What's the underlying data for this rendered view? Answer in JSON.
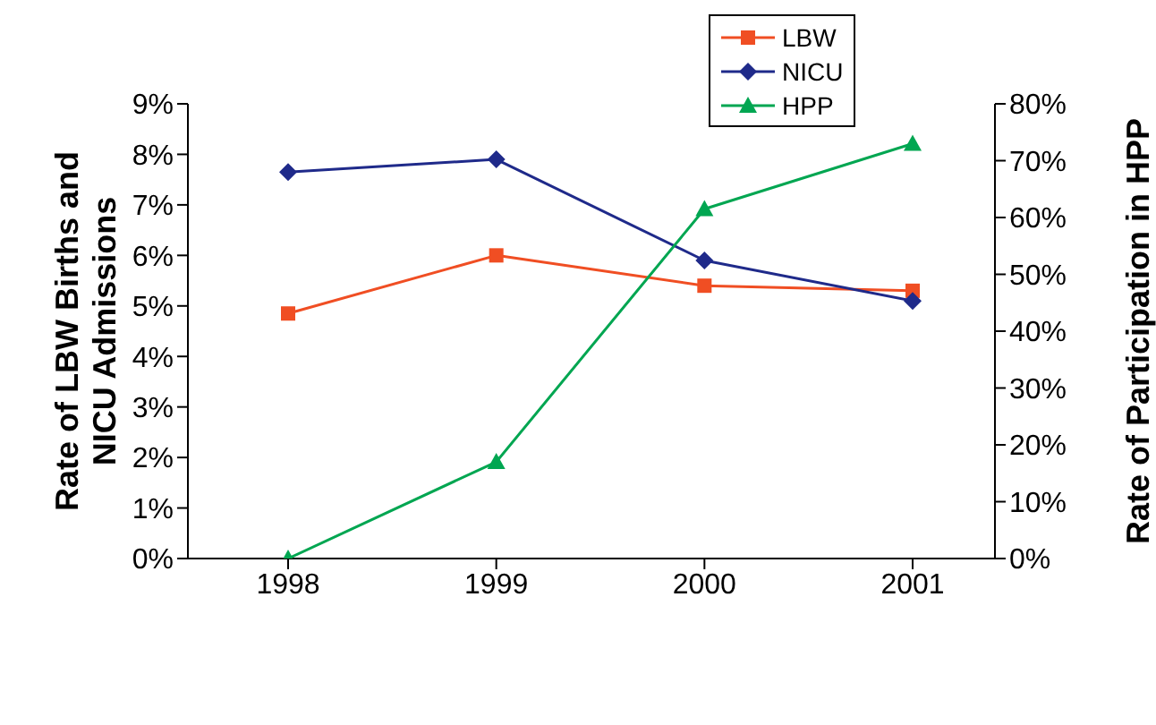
{
  "chart_data": {
    "type": "line",
    "categories": [
      "1998",
      "1999",
      "2000",
      "2001"
    ],
    "ylabel": "Rate of LBW Births and NICU Admissions",
    "y2label": "Rate of Participation in HPP",
    "ylim": [
      0,
      9
    ],
    "yticks": [
      {
        "value": 0,
        "label": "0%"
      },
      {
        "value": 1,
        "label": "1%"
      },
      {
        "value": 2,
        "label": "2%"
      },
      {
        "value": 3,
        "label": "3%"
      },
      {
        "value": 4,
        "label": "4%"
      },
      {
        "value": 5,
        "label": "5%"
      },
      {
        "value": 6,
        "label": "6%"
      },
      {
        "value": 7,
        "label": "7%"
      },
      {
        "value": 8,
        "label": "8%"
      },
      {
        "value": 9,
        "label": "9%"
      }
    ],
    "y2lim": [
      0,
      80
    ],
    "y2ticks": [
      {
        "value": 0,
        "label": "0%"
      },
      {
        "value": 10,
        "label": "10%"
      },
      {
        "value": 20,
        "label": "20%"
      },
      {
        "value": 30,
        "label": "30%"
      },
      {
        "value": 40,
        "label": "40%"
      },
      {
        "value": 50,
        "label": "50%"
      },
      {
        "value": 60,
        "label": "60%"
      },
      {
        "value": 70,
        "label": "70%"
      },
      {
        "value": 80,
        "label": "80%"
      }
    ],
    "series": [
      {
        "name": "LBW",
        "color": "#f04e23",
        "marker": "square",
        "values": [
          4.85,
          6.0,
          5.4,
          5.3
        ]
      },
      {
        "name": "NICU",
        "color": "#1f2a8a",
        "marker": "diamond",
        "values": [
          7.65,
          7.9,
          5.9,
          5.1
        ]
      },
      {
        "name": "HPP",
        "color": "#00a651",
        "marker": "triangle",
        "axis": "y2",
        "values": [
          0,
          17,
          61.5,
          73
        ]
      }
    ],
    "legend": "top right",
    "line_style": "solid"
  }
}
